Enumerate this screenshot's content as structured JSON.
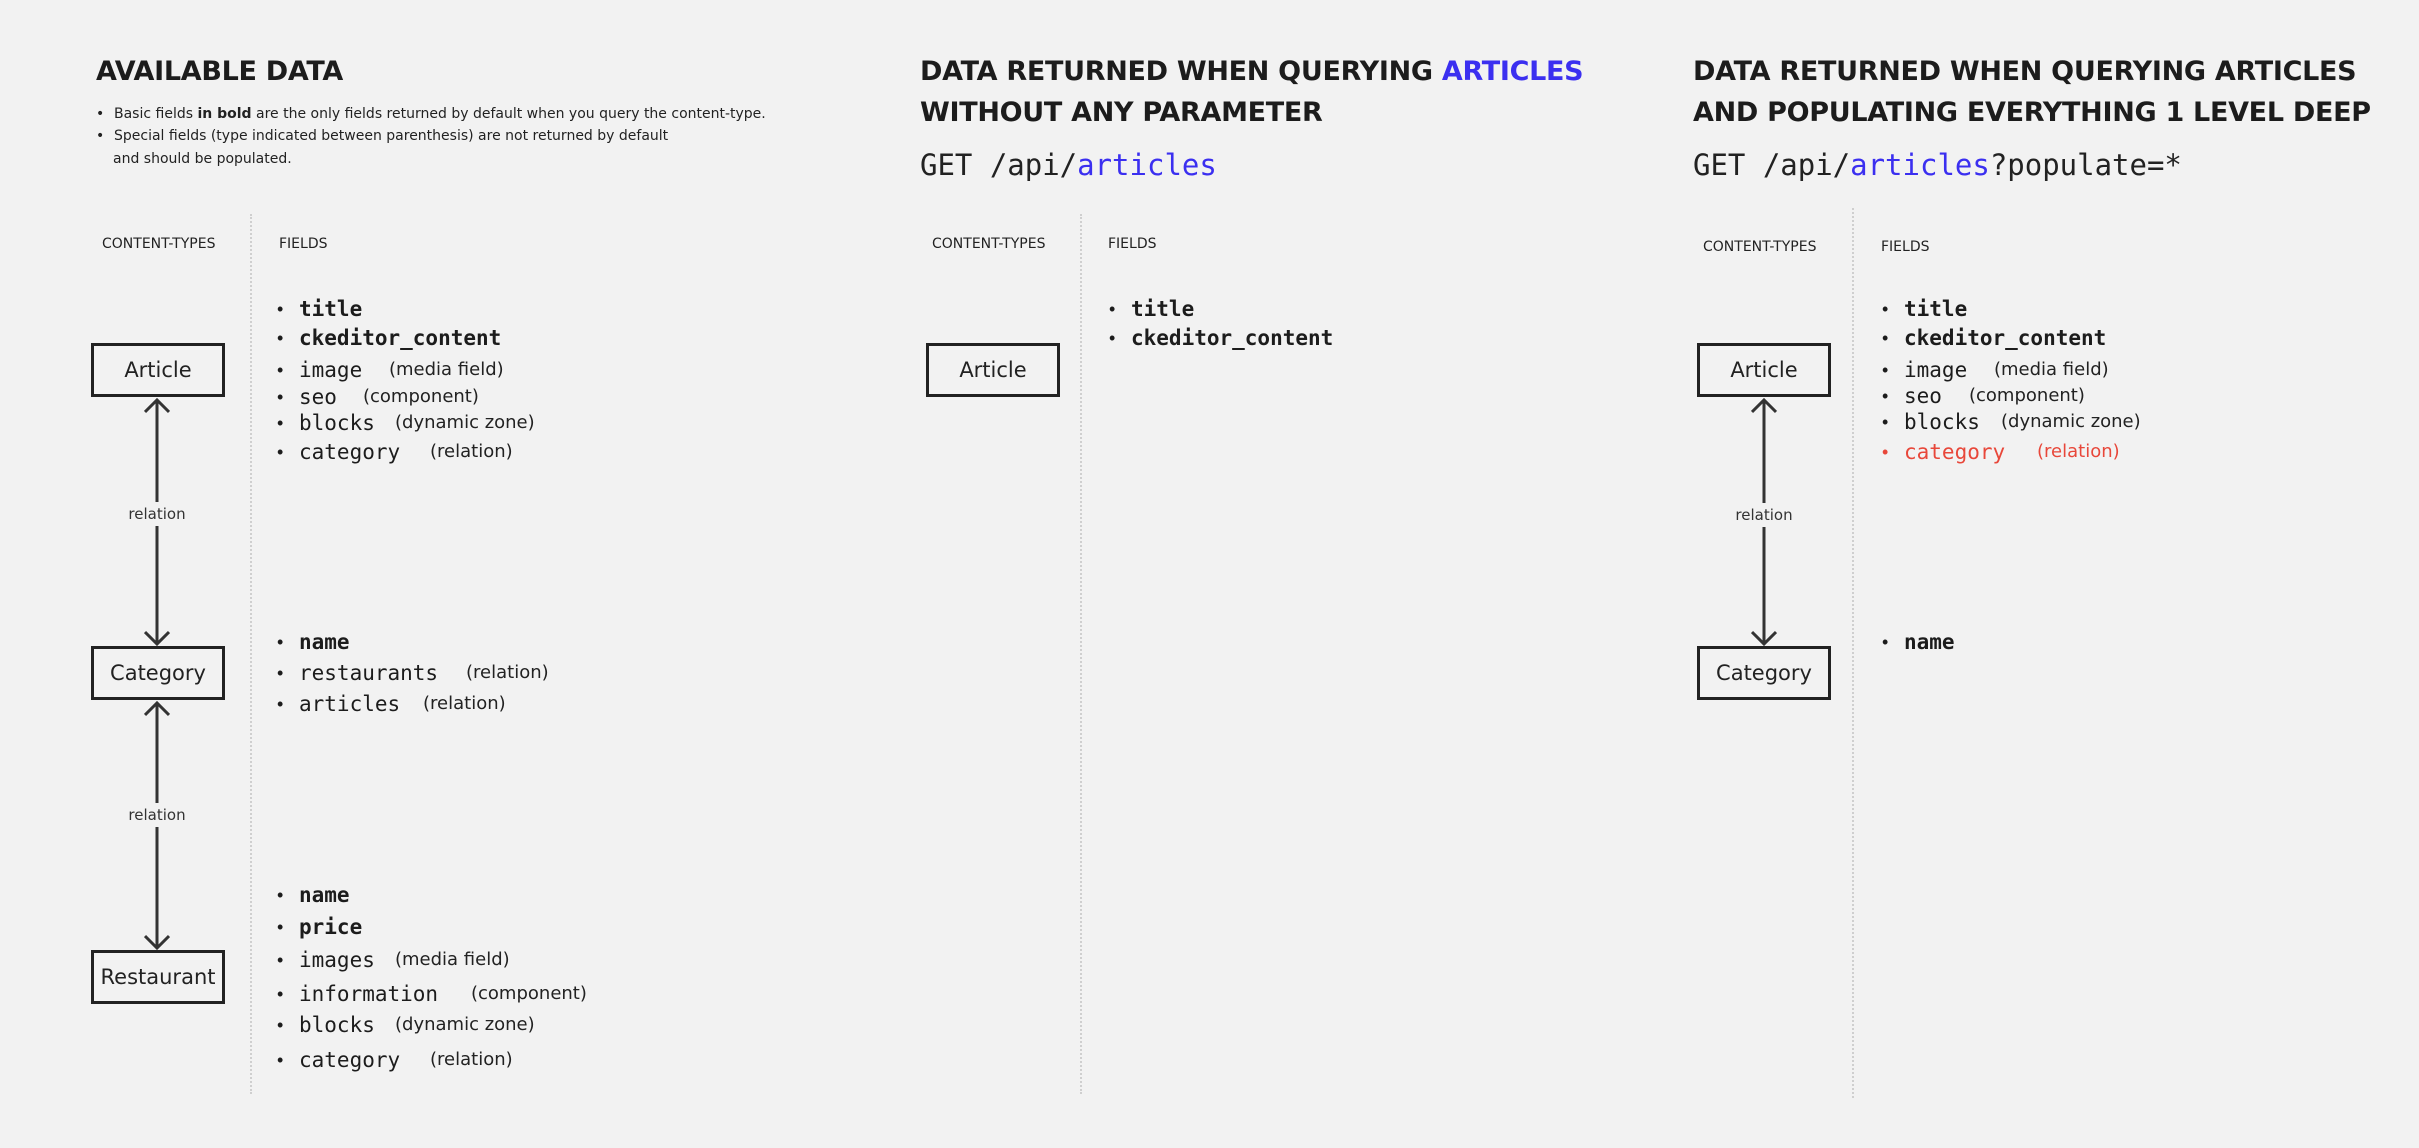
{
  "colors": {
    "accent_blue": "#3b2ff0",
    "highlight_red": "#e8473a"
  },
  "panels": {
    "available": {
      "title": "AVAILABLE DATA",
      "notes": {
        "n1_pre": "Basic fields ",
        "n1_bold": "in bold",
        "n1_post": " are the only fields returned by default when you query the content-type.",
        "n2_line1": "Special fields (type indicated between parenthesis) are not returned by default",
        "n2_line2": "and should be populated."
      },
      "col_content_types": "CONTENT-TYPES",
      "col_fields": "FIELDS",
      "relation_label": "relation",
      "types": {
        "article": {
          "name": "Article",
          "fields": [
            {
              "name": "title"
            },
            {
              "name": "ckeditor_content"
            },
            {
              "name": "image",
              "type": "(media field)"
            },
            {
              "name": "seo",
              "type": "(component)"
            },
            {
              "name": "blocks",
              "type": "(dynamic zone)"
            },
            {
              "name": "category",
              "type": "(relation)"
            }
          ]
        },
        "category": {
          "name": "Category",
          "fields": [
            {
              "name": "name"
            },
            {
              "name": "restaurants",
              "type": "(relation)"
            },
            {
              "name": "articles",
              "type": "(relation)"
            }
          ]
        },
        "restaurant": {
          "name": "Restaurant",
          "fields": [
            {
              "name": "name"
            },
            {
              "name": "price"
            },
            {
              "name": "images",
              "type": "(media field)"
            },
            {
              "name": "information",
              "type": "(component)"
            },
            {
              "name": "blocks",
              "type": "(dynamic zone)"
            },
            {
              "name": "category",
              "type": "(relation)"
            }
          ]
        }
      }
    },
    "no_params": {
      "title_pre": "DATA RETURNED WHEN QUERYING ",
      "title_hl": "ARTICLES",
      "title_line2": "WITHOUT ANY PARAMETER",
      "get_pre": "GET /api/",
      "get_hl": "articles",
      "col_content_types": "CONTENT-TYPES",
      "col_fields": "FIELDS",
      "type_name": "Article",
      "fields": [
        "title",
        "ckeditor_content"
      ]
    },
    "populate": {
      "title_line1": "DATA RETURNED WHEN QUERYING ARTICLES",
      "title_line2": "AND POPULATING EVERYTHING 1 LEVEL DEEP",
      "get_pre": "GET /api/",
      "get_hl": "articles",
      "get_post": "?populate=*",
      "col_content_types": "CONTENT-TYPES",
      "col_fields": "FIELDS",
      "relation_label": "relation",
      "article": {
        "name": "Article",
        "fields": [
          {
            "name": "title"
          },
          {
            "name": "ckeditor_content"
          },
          {
            "name": "image",
            "type": "(media field)"
          },
          {
            "name": "seo",
            "type": "(component)"
          },
          {
            "name": "blocks",
            "type": "(dynamic zone)"
          },
          {
            "name": "category",
            "type": "(relation)"
          }
        ]
      },
      "category": {
        "name": "Category",
        "fields": [
          {
            "name": "name"
          }
        ]
      }
    }
  }
}
